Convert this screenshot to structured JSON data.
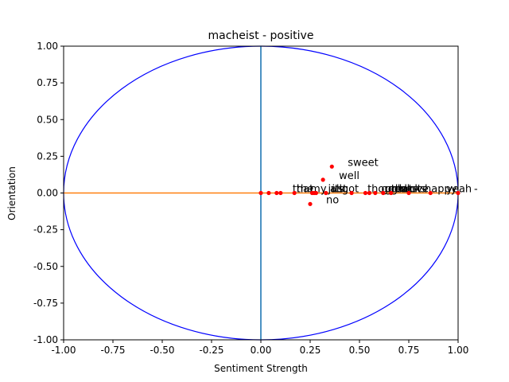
{
  "chart_data": {
    "type": "scatter",
    "title": "macheist - positive",
    "xlabel": "Sentiment Strength",
    "ylabel": "Orientation",
    "xlim": [
      -1.0,
      1.0
    ],
    "ylim": [
      -1.0,
      1.0
    ],
    "xticks": [
      "-1.00",
      "-0.75",
      "-0.50",
      "-0.25",
      "0.00",
      "0.25",
      "0.50",
      "0.75",
      "1.00"
    ],
    "yticks": [
      "-1.00",
      "-0.75",
      "-0.50",
      "-0.25",
      "0.00",
      "0.25",
      "0.50",
      "0.75",
      "1.00"
    ],
    "grid": false,
    "colors": {
      "points": "#ff0000",
      "unit_circle": "#0000ff",
      "vertical_line": "#1f77b4",
      "horizontal_line": "#ff7f0e"
    },
    "points": [
      {
        "x": 0.36,
        "y": 0.18,
        "label": "sweet"
      },
      {
        "x": 0.315,
        "y": 0.09,
        "label": "well"
      },
      {
        "x": 0.25,
        "y": -0.075,
        "label": "no"
      },
      {
        "x": 0.0,
        "y": 0.0,
        "label": ""
      },
      {
        "x": 0.04,
        "y": 0.0,
        "label": ""
      },
      {
        "x": 0.08,
        "y": 0.0,
        "label": "that"
      },
      {
        "x": 0.1,
        "y": 0.0,
        "label": "the"
      },
      {
        "x": 0.17,
        "y": 0.0,
        "label": "my"
      },
      {
        "x": 0.26,
        "y": 0.0,
        "label": "just"
      },
      {
        "x": 0.27,
        "y": 0.0,
        "label": "all"
      },
      {
        "x": 0.28,
        "y": 0.0,
        "label": "its"
      },
      {
        "x": 0.33,
        "y": 0.0,
        "label": "got"
      },
      {
        "x": 0.46,
        "y": 0.0,
        "label": "though"
      },
      {
        "x": 0.53,
        "y": 0.0,
        "label": "good"
      },
      {
        "x": 0.55,
        "y": 0.0,
        "label": "great"
      },
      {
        "x": 0.58,
        "y": 0.0,
        "label": "thanks"
      },
      {
        "x": 0.62,
        "y": 0.0,
        "label": "best"
      },
      {
        "x": 0.66,
        "y": 0.0,
        "label": "love"
      },
      {
        "x": 0.75,
        "y": 0.0,
        "label": "happy"
      },
      {
        "x": 0.86,
        "y": 0.0,
        "label": "yeah"
      },
      {
        "x": 1.0,
        "y": 0.0,
        "label": "-"
      }
    ]
  }
}
